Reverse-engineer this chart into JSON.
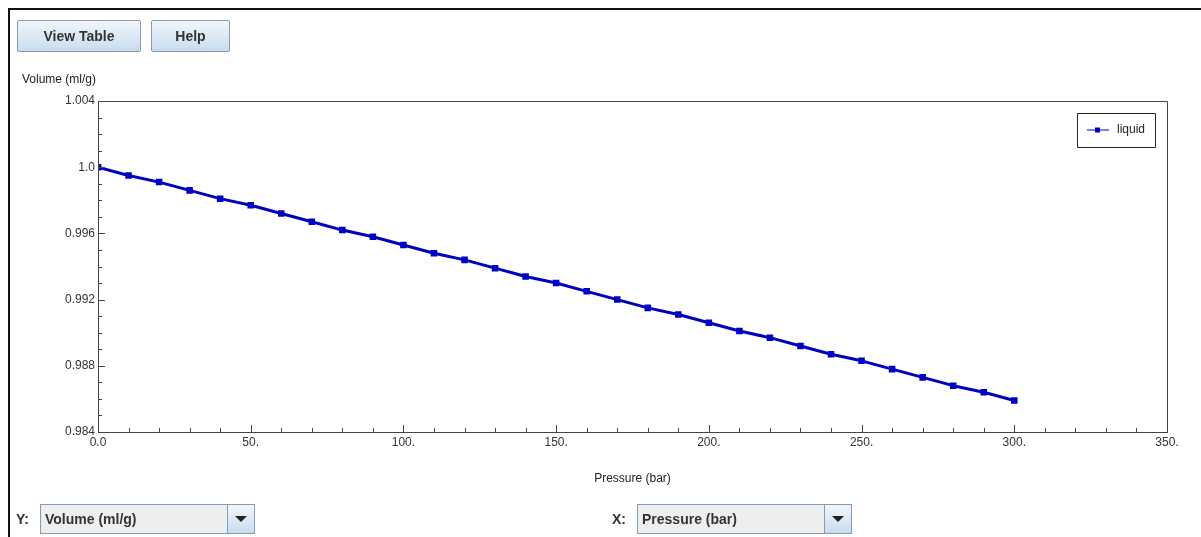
{
  "chart_data": {
    "type": "line",
    "xlabel": "Pressure (bar)",
    "ylabel": "Volume (ml/g)",
    "x": [
      0,
      10,
      20,
      30,
      40,
      50,
      60,
      70,
      80,
      90,
      100,
      110,
      120,
      130,
      140,
      150,
      160,
      170,
      180,
      190,
      200,
      210,
      220,
      230,
      240,
      250,
      260,
      270,
      280,
      290,
      300
    ],
    "series": [
      {
        "name": "liquid",
        "color": "#0000c0",
        "values": [
          1.0,
          0.9995,
          0.9991,
          0.9986,
          0.9981,
          0.9977,
          0.9972,
          0.9967,
          0.9962,
          0.9958,
          0.9953,
          0.9948,
          0.9944,
          0.9939,
          0.9934,
          0.993,
          0.9925,
          0.992,
          0.9915,
          0.9911,
          0.9906,
          0.9901,
          0.9897,
          0.9892,
          0.9887,
          0.9883,
          0.9878,
          0.9873,
          0.9868,
          0.9864,
          0.9859
        ]
      }
    ],
    "xlim": [
      0,
      350
    ],
    "xticks": [
      {
        "value": 0,
        "label": "0.0"
      },
      {
        "value": 10,
        "label": null
      },
      {
        "value": 20,
        "label": null
      },
      {
        "value": 30,
        "label": null
      },
      {
        "value": 40,
        "label": null
      },
      {
        "value": 50,
        "label": "50."
      },
      {
        "value": 60,
        "label": null
      },
      {
        "value": 70,
        "label": null
      },
      {
        "value": 80,
        "label": null
      },
      {
        "value": 90,
        "label": null
      },
      {
        "value": 100,
        "label": "100."
      },
      {
        "value": 110,
        "label": null
      },
      {
        "value": 120,
        "label": null
      },
      {
        "value": 130,
        "label": null
      },
      {
        "value": 140,
        "label": null
      },
      {
        "value": 150,
        "label": "150."
      },
      {
        "value": 160,
        "label": null
      },
      {
        "value": 170,
        "label": null
      },
      {
        "value": 180,
        "label": null
      },
      {
        "value": 190,
        "label": null
      },
      {
        "value": 200,
        "label": "200."
      },
      {
        "value": 210,
        "label": null
      },
      {
        "value": 220,
        "label": null
      },
      {
        "value": 230,
        "label": null
      },
      {
        "value": 240,
        "label": null
      },
      {
        "value": 250,
        "label": "250."
      },
      {
        "value": 260,
        "label": null
      },
      {
        "value": 270,
        "label": null
      },
      {
        "value": 280,
        "label": null
      },
      {
        "value": 290,
        "label": null
      },
      {
        "value": 300,
        "label": "300."
      },
      {
        "value": 310,
        "label": null
      },
      {
        "value": 320,
        "label": null
      },
      {
        "value": 330,
        "label": null
      },
      {
        "value": 340,
        "label": null
      },
      {
        "value": 350,
        "label": "350."
      }
    ],
    "ylim": [
      0.984,
      1.004
    ],
    "yticks": [
      0.984,
      {
        "value": 0.985,
        "label": null
      },
      {
        "value": 0.986,
        "label": null
      },
      {
        "value": 0.987,
        "label": null
      },
      0.988,
      {
        "value": 0.989,
        "label": null
      },
      {
        "value": 0.99,
        "label": null
      },
      {
        "value": 0.991,
        "label": null
      },
      0.992,
      {
        "value": 0.993,
        "label": null
      },
      {
        "value": 0.994,
        "label": null
      },
      {
        "value": 0.995,
        "label": null
      },
      0.996,
      {
        "value": 0.997,
        "label": null
      },
      {
        "value": 0.998,
        "label": null
      },
      {
        "value": 0.999,
        "label": null
      },
      {
        "value": 1.0,
        "label": "1.0"
      },
      {
        "value": 1.001,
        "label": null
      },
      {
        "value": 1.002,
        "label": null
      },
      {
        "value": 1.003,
        "label": null
      },
      1.004
    ],
    "grid": false,
    "legend": "top right",
    "marker": "square",
    "line_style": "solid",
    "annotations": [
      "View Table",
      "Help",
      "Y:",
      "Volume (ml/g)",
      "X:",
      "Pressure (bar)"
    ]
  }
}
